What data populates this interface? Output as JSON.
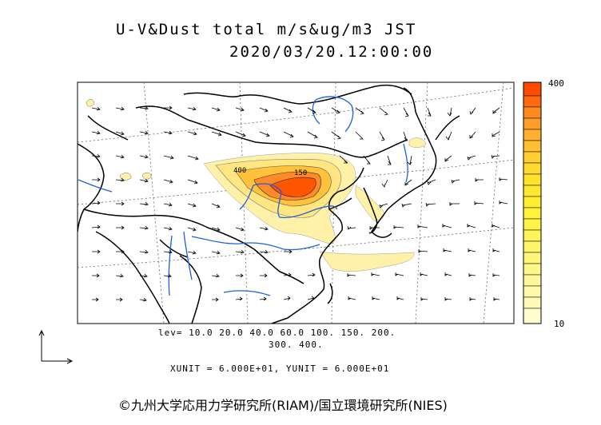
{
  "title_line1": "U-V&Dust total m/s&ug/m3 JST",
  "title_line2": "2020/03/20.12:00:00",
  "legend": {
    "levels_line1": "lev= 10.0 20.0 40.0 60.0 100. 150. 200.",
    "levels_line2": "300. 400.",
    "units_line": "XUNIT = 6.000E+01, YUNIT = 6.000E+01",
    "colorbar_max": "400",
    "colorbar_min": "10",
    "contour_label_a": "400",
    "contour_label_b": "150"
  },
  "credit": "©九州大学応用力学研究所(RIAM)/国立環境研究所(NIES)",
  "colors": {
    "coast": "#000000",
    "river": "#1f5fe0",
    "grid": "#555555",
    "dust_low": "#fff2a8",
    "dust_mid": "#ffd23a",
    "dust_high": "#ff5500"
  }
}
